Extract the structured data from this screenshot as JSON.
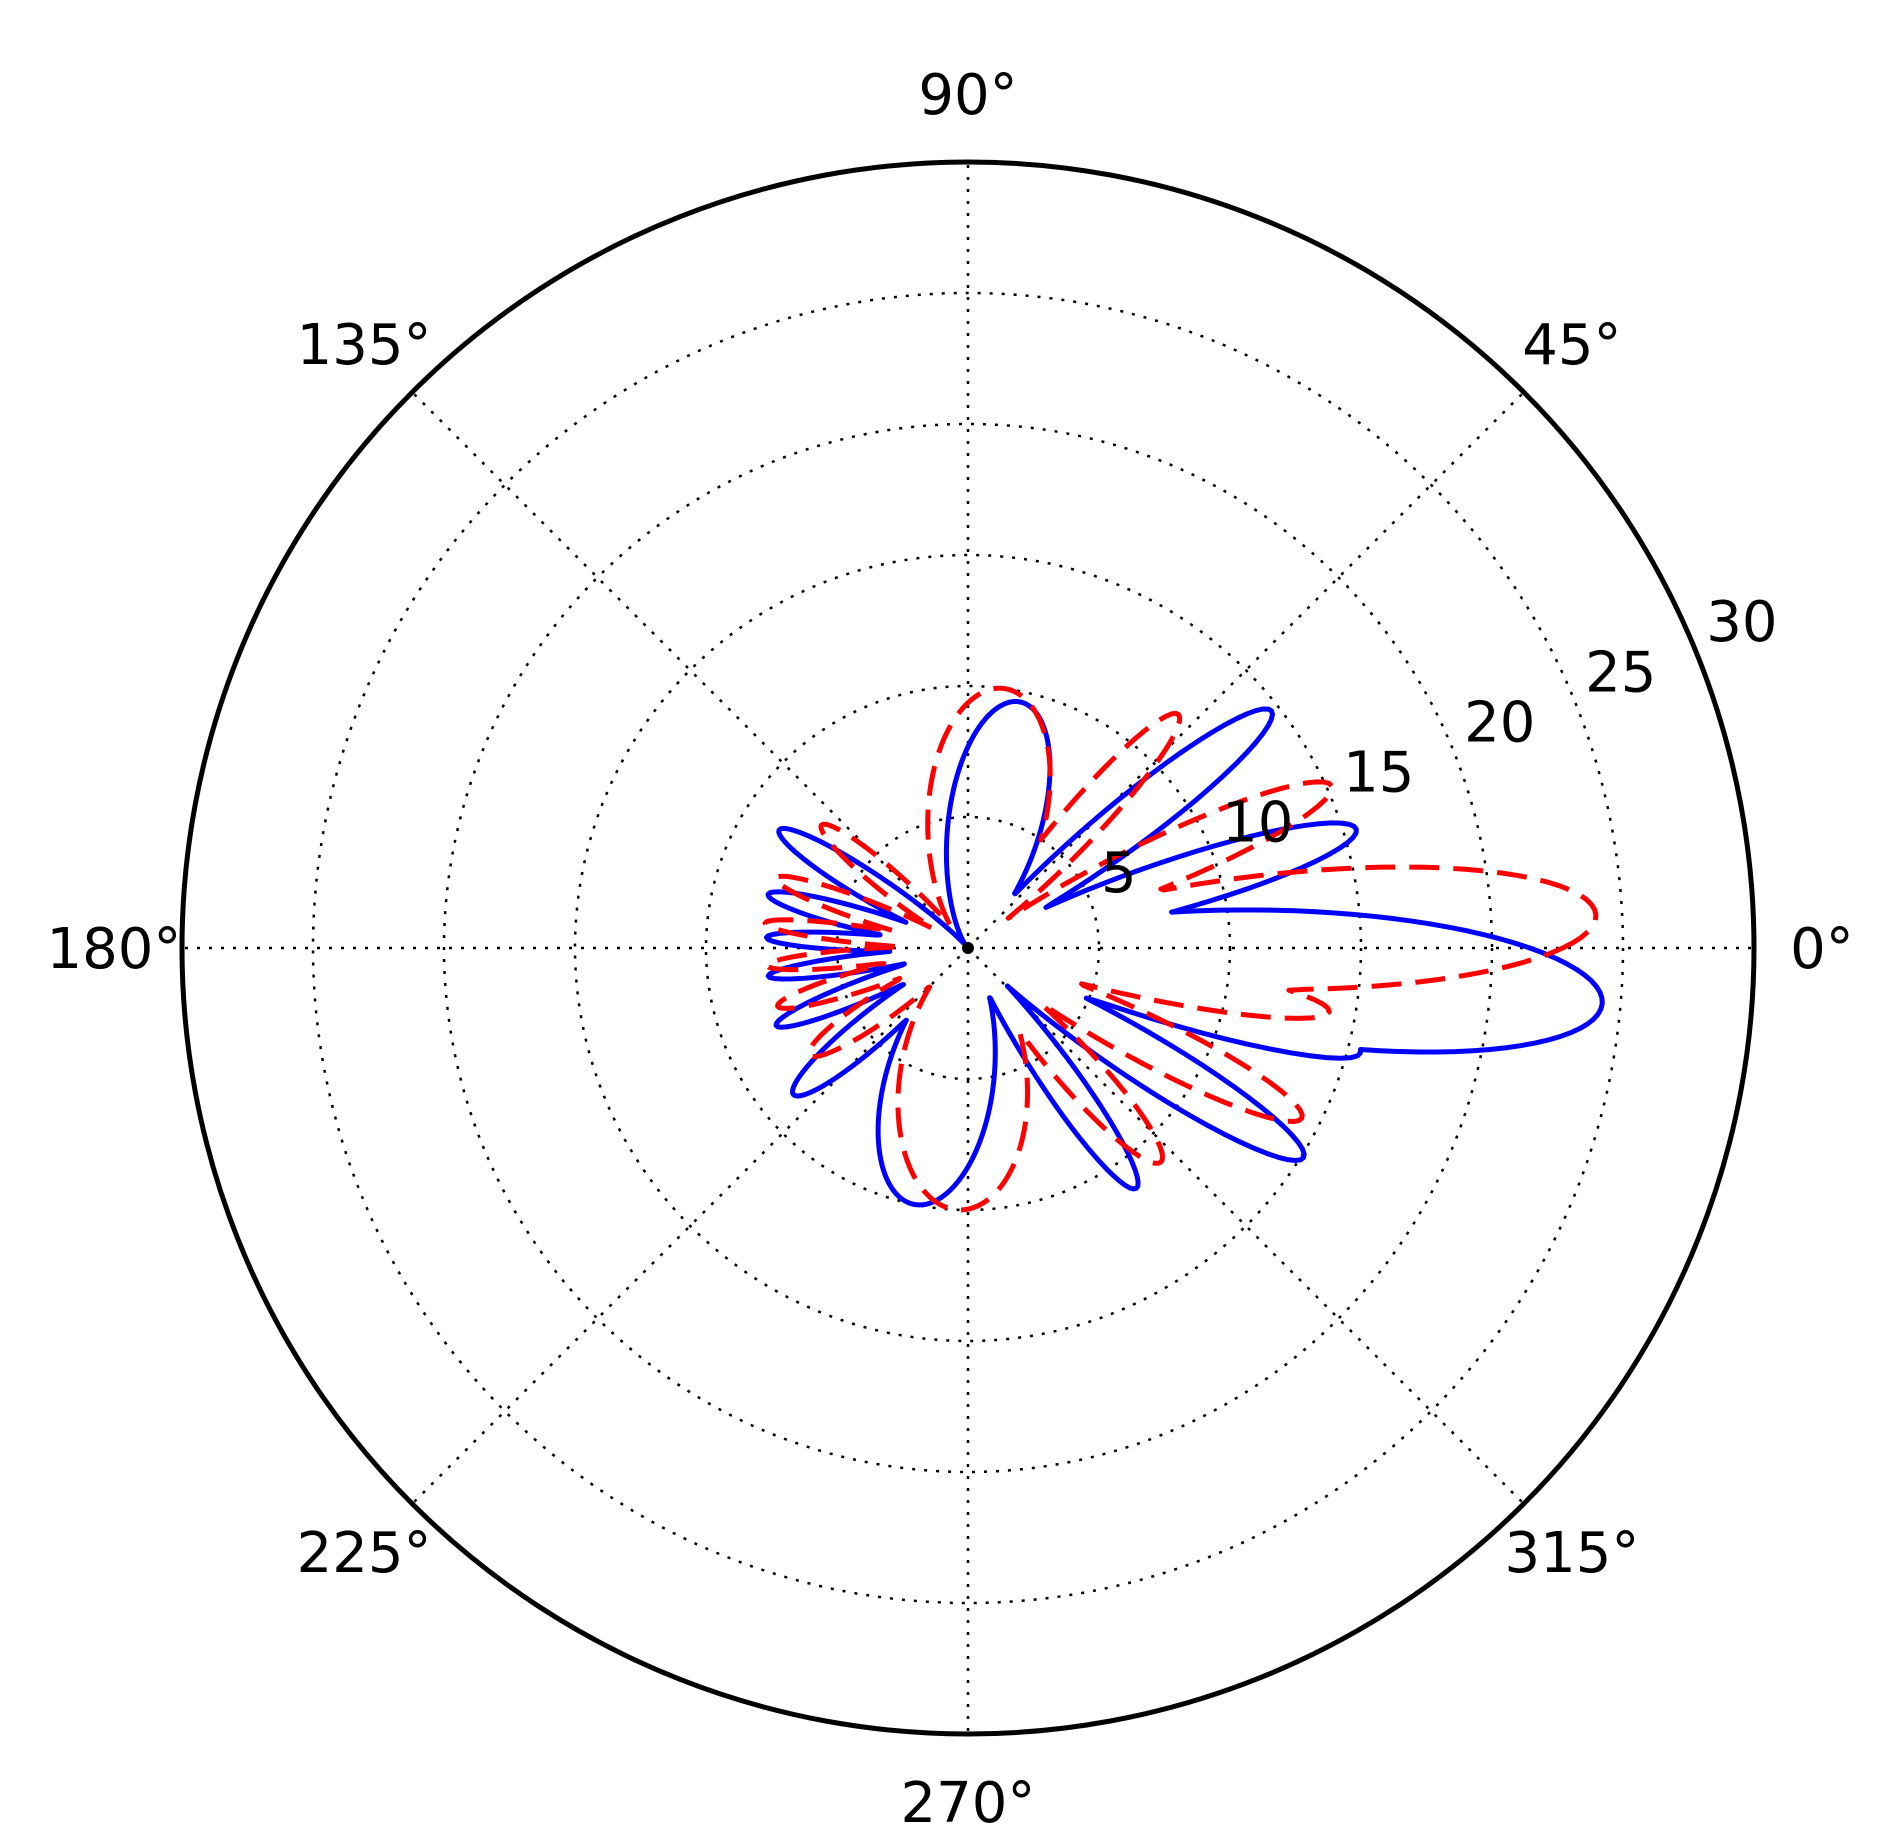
{
  "chart_data": {
    "type": "polar-line",
    "title": "",
    "angle_unit": "degrees",
    "angular_ticks": [
      "0°",
      "45°",
      "90°",
      "135°",
      "180°",
      "225°",
      "270°",
      "315°"
    ],
    "angular_tick_values": [
      0,
      45,
      90,
      135,
      180,
      225,
      270,
      315
    ],
    "radial_ticks": [
      "5",
      "10",
      "15",
      "20",
      "25",
      "30"
    ],
    "radial_tick_values": [
      5,
      10,
      15,
      20,
      25,
      30
    ],
    "rlim": [
      0,
      30
    ],
    "grid": true,
    "grid_style": "dotted",
    "legend": "none",
    "series": [
      {
        "color": "#0000ff",
        "line_style": "solid",
        "lobes": [
          {
            "angle": -5,
            "r": 24.3,
            "width": 10
          },
          {
            "angle": 17,
            "r": 15.5,
            "width": 6
          },
          {
            "angle": 38,
            "r": 14.7,
            "width": 6
          },
          {
            "angle": 78,
            "r": 9.6,
            "width": 18
          },
          {
            "angle": 148,
            "r": 8.5,
            "width": 6
          },
          {
            "angle": 165,
            "r": 7.9,
            "width": 5
          },
          {
            "angle": 177,
            "r": 7.7,
            "width": 4
          },
          {
            "angle": 188,
            "r": 7.7,
            "width": 4
          },
          {
            "angle": 202,
            "r": 7.9,
            "width": 5
          },
          {
            "angle": 220,
            "r": 8.7,
            "width": 7
          },
          {
            "angle": 258,
            "r": 10.0,
            "width": 20
          },
          {
            "angle": 305,
            "r": 11.2,
            "width": 6
          },
          {
            "angle": 328,
            "r": 15.1,
            "width": 6
          },
          {
            "angle": 345,
            "r": 15.5,
            "width": 5
          }
        ]
      },
      {
        "color": "#ff0000",
        "line_style": "dashed",
        "lobes": [
          {
            "angle": 3,
            "r": 24.0,
            "width": 9
          },
          {
            "angle": 24,
            "r": 15.2,
            "width": 6
          },
          {
            "angle": 48,
            "r": 12.0,
            "width": 6
          },
          {
            "angle": 82,
            "r": 10.0,
            "width": 22
          },
          {
            "angle": 140,
            "r": 7.3,
            "width": 6
          },
          {
            "angle": 160,
            "r": 7.8,
            "width": 5
          },
          {
            "angle": 173,
            "r": 7.8,
            "width": 4
          },
          {
            "angle": 185,
            "r": 7.7,
            "width": 4
          },
          {
            "angle": 197,
            "r": 7.6,
            "width": 5
          },
          {
            "angle": 214,
            "r": 7.3,
            "width": 7
          },
          {
            "angle": 268,
            "r": 10.0,
            "width": 24
          },
          {
            "angle": 312,
            "r": 11.0,
            "width": 7
          },
          {
            "angle": 333,
            "r": 14.3,
            "width": 6
          },
          {
            "angle": 350,
            "r": 14.0,
            "width": 5
          }
        ]
      }
    ]
  }
}
